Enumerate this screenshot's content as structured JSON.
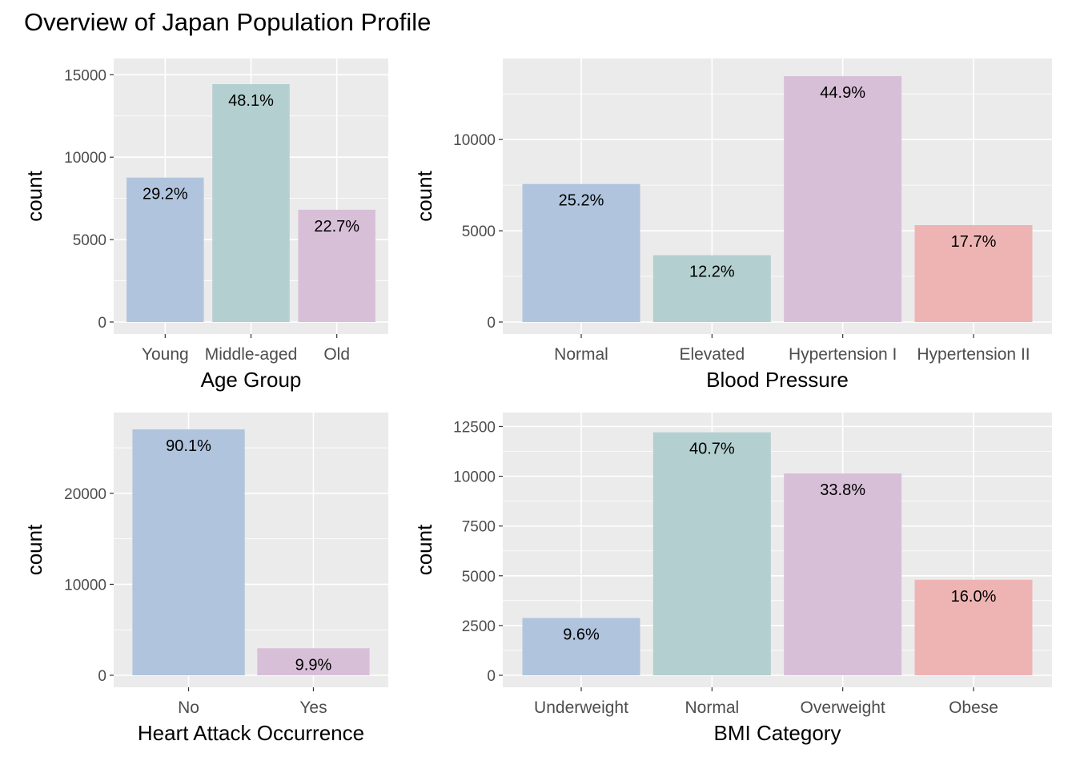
{
  "title": "Overview of Japan Population Profile",
  "chart_data": [
    {
      "type": "bar",
      "xlabel": "Age Group",
      "ylabel": "count",
      "categories": [
        "Young",
        "Middle-aged",
        "Old"
      ],
      "values": [
        8760,
        14430,
        6810
      ],
      "labels": [
        "29.2%",
        "48.1%",
        "22.7%"
      ],
      "colors": [
        "#B0C4DE",
        "#B4CFCF",
        "#D8BFD8"
      ],
      "ylim": [
        0,
        15500
      ],
      "yticks": [
        0,
        5000,
        10000,
        15000
      ],
      "grid": true,
      "legend": "none"
    },
    {
      "type": "bar",
      "xlabel": "Blood Pressure",
      "ylabel": "count",
      "categories": [
        "Normal",
        "Elevated",
        "Hypertension I",
        "Hypertension II"
      ],
      "values": [
        7560,
        3660,
        13470,
        5310
      ],
      "labels": [
        "25.2%",
        "12.2%",
        "44.9%",
        "17.7%"
      ],
      "colors": [
        "#B0C4DE",
        "#B4CFCF",
        "#D8BFD8",
        "#EEB4B4"
      ],
      "ylim": [
        0,
        14000
      ],
      "yticks": [
        0,
        5000,
        10000
      ],
      "grid": true,
      "legend": "none"
    },
    {
      "type": "bar",
      "xlabel": "Heart Attack Occurrence",
      "ylabel": "count",
      "categories": [
        "No",
        "Yes"
      ],
      "values": [
        27030,
        2970
      ],
      "labels": [
        "90.1%",
        "9.9%"
      ],
      "colors": [
        "#B0C4DE",
        "#D8BFD8"
      ],
      "ylim": [
        0,
        28000
      ],
      "yticks": [
        0,
        10000,
        20000
      ],
      "grid": true,
      "legend": "none"
    },
    {
      "type": "bar",
      "xlabel": "BMI Category",
      "ylabel": "count",
      "categories": [
        "Underweight",
        "Normal",
        "Overweight",
        "Obese"
      ],
      "values": [
        2880,
        12210,
        10140,
        4800
      ],
      "labels": [
        "9.6%",
        "40.7%",
        "33.8%",
        "16.0%"
      ],
      "colors": [
        "#B0C4DE",
        "#B4CFCF",
        "#D8BFD8",
        "#EEB4B4"
      ],
      "ylim": [
        0,
        12800
      ],
      "yticks": [
        0,
        2500,
        5000,
        7500,
        10000,
        12500
      ],
      "grid": true,
      "legend": "none"
    }
  ]
}
